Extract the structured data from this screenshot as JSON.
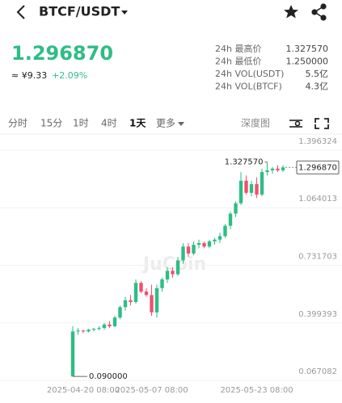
{
  "header": {
    "pair": "BTCF/USDT"
  },
  "ticker": {
    "price": "1.296870",
    "cny": "≈ ¥9.33",
    "change": "+2.09%",
    "stats": [
      {
        "label": "24h 最高价",
        "value": "1.327570"
      },
      {
        "label": "24h 最低价",
        "value": "1.250000"
      },
      {
        "label": "24h VOL(USDT)",
        "value": "5.5亿"
      },
      {
        "label": "24h VOL(BTCF)",
        "value": "4.3亿"
      }
    ]
  },
  "tabs": [
    "分时",
    "15分",
    "1时",
    "4时",
    "1天",
    "更多"
  ],
  "active_tab": 4,
  "depth": "深度图",
  "chart_data": {
    "type": "candlestick",
    "watermark": "JuCoin",
    "up_color": "#2ebd85",
    "down_color": "#f0506e",
    "categories": [
      null,
      null,
      "2025-04-20 08:00",
      null,
      null,
      null,
      null,
      null,
      null,
      null,
      null,
      null,
      null,
      null,
      null,
      "2025-05-07 08:00",
      null,
      null,
      null,
      null,
      null,
      null,
      null,
      null,
      null,
      null,
      null,
      null,
      null,
      null,
      null,
      null,
      null,
      null,
      null,
      "2025-05-23 08:00",
      null,
      null,
      null,
      null,
      null
    ],
    "open": [
      0.09,
      0.35,
      0.355,
      0.35,
      0.36,
      0.365,
      0.37,
      0.39,
      0.38,
      0.43,
      0.49,
      0.53,
      0.52,
      0.63,
      0.58,
      0.56,
      0.46,
      0.6,
      0.65,
      0.7,
      0.68,
      0.76,
      0.84,
      0.8,
      0.85,
      0.86,
      0.84,
      0.87,
      0.88,
      0.9,
      0.96,
      1.03,
      1.09,
      1.22,
      1.15,
      1.2,
      1.14,
      1.27,
      1.28,
      1.29,
      1.28
    ],
    "high": [
      0.38,
      0.37,
      0.36,
      0.365,
      0.37,
      0.38,
      0.4,
      0.41,
      0.44,
      0.5,
      0.55,
      0.56,
      0.65,
      0.64,
      0.6,
      0.62,
      0.62,
      0.66,
      0.72,
      0.72,
      0.78,
      0.86,
      0.86,
      0.87,
      0.88,
      0.87,
      0.88,
      0.89,
      0.92,
      0.97,
      1.04,
      1.1,
      1.27,
      1.25,
      1.22,
      1.24,
      1.29,
      1.32757,
      1.3,
      1.31,
      1.31
    ],
    "low": [
      0.09,
      0.33,
      0.34,
      0.345,
      0.35,
      0.355,
      0.36,
      0.37,
      0.375,
      0.42,
      0.47,
      0.5,
      0.51,
      0.57,
      0.55,
      0.44,
      0.43,
      0.58,
      0.63,
      0.66,
      0.67,
      0.74,
      0.78,
      0.79,
      0.83,
      0.83,
      0.83,
      0.85,
      0.86,
      0.89,
      0.94,
      1.01,
      1.08,
      1.14,
      1.13,
      1.12,
      1.13,
      1.25,
      1.26,
      1.27,
      1.27
    ],
    "close": [
      0.35,
      0.355,
      0.35,
      0.36,
      0.365,
      0.37,
      0.39,
      0.38,
      0.43,
      0.49,
      0.53,
      0.52,
      0.63,
      0.58,
      0.56,
      0.46,
      0.6,
      0.65,
      0.7,
      0.68,
      0.76,
      0.84,
      0.8,
      0.85,
      0.86,
      0.84,
      0.87,
      0.88,
      0.9,
      0.96,
      1.03,
      1.09,
      1.22,
      1.15,
      1.2,
      1.14,
      1.27,
      1.28,
      1.29,
      1.28,
      1.29687
    ],
    "ylim": [
      0.044,
      1.494
    ],
    "yticks": [
      0.067082,
      0.399393,
      0.731703,
      1.064013,
      1.396324
    ],
    "grid": true,
    "annotations": [
      {
        "value": 1.32757,
        "label": "1.327570",
        "index": 37
      },
      {
        "value": 0.09,
        "label": "0.090000",
        "index": 0
      }
    ],
    "last_price": {
      "value": 1.29687,
      "label": "1.296870"
    }
  }
}
